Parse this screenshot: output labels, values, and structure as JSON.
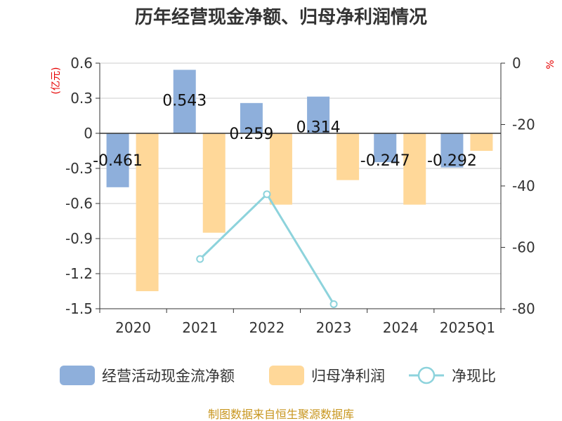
{
  "title": "历年经营现金净额、归母净利润情况",
  "source": "制图数据来自恒生聚源数据库",
  "colors": {
    "cash": "#8eafdb",
    "profit": "#ffd899",
    "ratio": "#8dd3dc",
    "grid": "#cccccc",
    "axis": "#333333",
    "unit": "#e60000"
  },
  "chart_data": {
    "type": "bar",
    "categories": [
      "2020",
      "2021",
      "2022",
      "2023",
      "2024",
      "2025Q1"
    ],
    "series": [
      {
        "name": "经营活动现金流净额",
        "type": "bar",
        "axis": "left",
        "values": [
          -0.461,
          0.543,
          0.259,
          0.314,
          -0.247,
          -0.292
        ],
        "labels": [
          "-0.461",
          "0.543",
          "0.259",
          "0.314",
          "-0.247",
          "-0.292"
        ]
      },
      {
        "name": "归母净利润",
        "type": "bar",
        "axis": "left",
        "values": [
          -1.35,
          -0.85,
          -0.61,
          -0.4,
          -0.61,
          -0.15
        ]
      },
      {
        "name": "净现比",
        "type": "line",
        "axis": "right",
        "values": [
          null,
          -63.8,
          -42.7,
          -78.5,
          null,
          null
        ]
      }
    ],
    "left_axis": {
      "unit": "(亿元)",
      "ylim": [
        -1.5,
        0.6
      ],
      "ticks": [
        0.6,
        0.3,
        0,
        -0.3,
        -0.6,
        -0.9,
        -1.2,
        -1.5
      ],
      "tick_labels": [
        "0.6",
        "0.3",
        "0",
        "-0.3",
        "-0.6",
        "-0.9",
        "-1.2",
        "-1.5"
      ]
    },
    "right_axis": {
      "unit": "%",
      "ylim": [
        -80,
        0
      ],
      "ticks": [
        0,
        -20,
        -40,
        -60,
        -80
      ],
      "tick_labels": [
        "0",
        "-20",
        "-40",
        "-60",
        "-80"
      ]
    },
    "grid": true,
    "legend_position": "bottom"
  }
}
